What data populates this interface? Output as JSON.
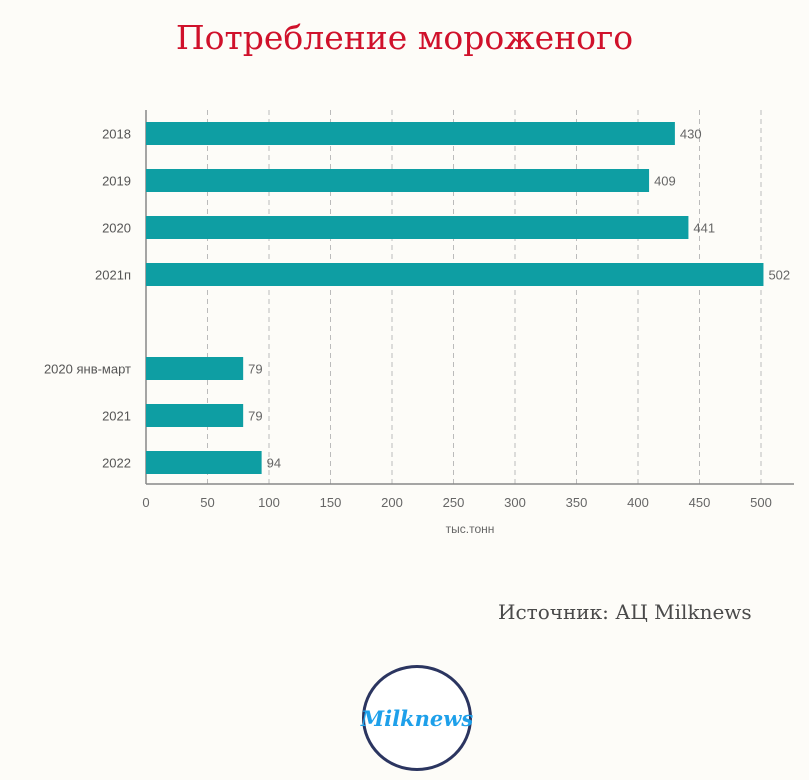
{
  "chart_data": {
    "type": "bar",
    "orientation": "horizontal",
    "title": "Потребление мороженого",
    "categories": [
      "2018",
      "2019",
      "2020",
      "2021п",
      "",
      "2020 янв-март",
      "2021",
      "2022"
    ],
    "values": [
      430,
      409,
      441,
      502,
      null,
      79,
      79,
      94
    ],
    "xlabel": "тыс.тонн",
    "ylabel": "",
    "xlim": [
      0,
      525
    ],
    "xticks": [
      0,
      50,
      100,
      150,
      200,
      250,
      300,
      350,
      400,
      450,
      500
    ],
    "grid": true,
    "bar_color": "#0e9ea3",
    "data_labels": true
  },
  "source": "Источник: АЦ Milknews",
  "logo_text": "Milknews"
}
